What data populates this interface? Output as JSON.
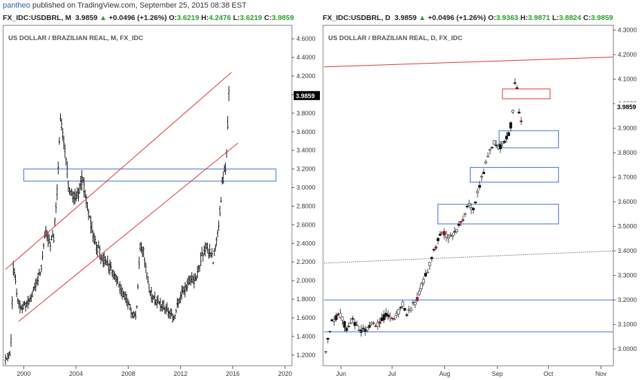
{
  "header": {
    "user": "pantheo",
    "published": "published on TradingView.com, September 25, 2015 08:38 EST"
  },
  "panels": [
    {
      "symbol": "FX_IDC:USDBRL, M",
      "price": "3.9859",
      "change": "+0.0496 (+1.26%)",
      "o": "3.6219",
      "h": "4.2476",
      "l": "3.6219",
      "c": "3.9859",
      "title": "US DOLLAR / BRAZILIAN REAL, M, FX_IDC",
      "last_label": "3.9859"
    },
    {
      "symbol": "FX_IDC:USDBRL, D",
      "price": "3.9859",
      "change": "+0.0496 (+1.26%)",
      "o": "3.9363",
      "h": "3.9871",
      "l": "3.8824",
      "c": "3.9859",
      "title": "US DOLLAR / BRAZILIAN REAL, D, FX_IDC",
      "last_label": "3.9859"
    }
  ],
  "labels": {
    "o": "O:",
    "h": "H:",
    "l": "L:",
    "c": "C:",
    "arrow": "▲"
  },
  "colors": {
    "up": "#2a9d2a",
    "down": "#000000",
    "trend": "#e03030",
    "zone_blue": "#3a6fd0",
    "zone_red": "#e03030",
    "brand_blue": "#2a62a5"
  },
  "chart_data": [
    {
      "type": "bar",
      "title": "US DOLLAR / BRAZILIAN REAL, M, FX_IDC",
      "interval": "monthly",
      "x_ticks": [
        "2000",
        "2004",
        "2008",
        "2012",
        "2016",
        "2020"
      ],
      "x_tick_years": [
        2000,
        2004,
        2008,
        2012,
        2016,
        2020
      ],
      "y_ticks": [
        "4.6000",
        "4.4000",
        "4.2000",
        "4.0000",
        "3.8000",
        "3.6000",
        "3.4000",
        "3.2000",
        "3.0000",
        "2.8000",
        "2.6000",
        "2.4000",
        "2.2000",
        "2.0000",
        "1.8000",
        "1.6000",
        "1.4000",
        "1.2000"
      ],
      "xlim": [
        1998.5,
        2020.5
      ],
      "ylim": [
        1.08,
        4.72
      ],
      "grid": false,
      "path_points": [
        [
          1998.6,
          1.15
        ],
        [
          1999.0,
          1.22
        ],
        [
          1999.2,
          2.15
        ],
        [
          1999.6,
          1.75
        ],
        [
          2000.0,
          1.72
        ],
        [
          2000.5,
          1.82
        ],
        [
          2000.9,
          1.95
        ],
        [
          2001.3,
          2.1
        ],
        [
          2001.7,
          2.55
        ],
        [
          2001.9,
          2.4
        ],
        [
          2002.3,
          2.45
        ],
        [
          2002.6,
          3.05
        ],
        [
          2002.8,
          3.75
        ],
        [
          2002.95,
          3.6
        ],
        [
          2003.2,
          3.35
        ],
        [
          2003.5,
          2.95
        ],
        [
          2003.8,
          2.9
        ],
        [
          2004.2,
          2.95
        ],
        [
          2004.5,
          3.1
        ],
        [
          2004.8,
          2.85
        ],
        [
          2005.2,
          2.55
        ],
        [
          2005.6,
          2.35
        ],
        [
          2006.0,
          2.25
        ],
        [
          2006.5,
          2.15
        ],
        [
          2007.0,
          2.05
        ],
        [
          2007.5,
          1.9
        ],
        [
          2007.9,
          1.78
        ],
        [
          2008.3,
          1.65
        ],
        [
          2008.6,
          1.62
        ],
        [
          2008.9,
          2.35
        ],
        [
          2009.2,
          2.3
        ],
        [
          2009.6,
          1.9
        ],
        [
          2010.0,
          1.78
        ],
        [
          2010.5,
          1.76
        ],
        [
          2011.0,
          1.68
        ],
        [
          2011.5,
          1.58
        ],
        [
          2011.9,
          1.8
        ],
        [
          2012.3,
          1.9
        ],
        [
          2012.7,
          2.02
        ],
        [
          2013.2,
          2.0
        ],
        [
          2013.6,
          2.28
        ],
        [
          2014.0,
          2.38
        ],
        [
          2014.5,
          2.22
        ],
        [
          2014.9,
          2.58
        ],
        [
          2015.2,
          3.05
        ],
        [
          2015.5,
          3.25
        ],
        [
          2015.7,
          4.0
        ]
      ],
      "trend_lines": [
        {
          "from": [
            1998.6,
            2.12
          ],
          "to": [
            2015.9,
            4.24
          ]
        },
        {
          "from": [
            1999.6,
            1.56
          ],
          "to": [
            2016.4,
            3.48
          ]
        }
      ],
      "zones": [
        {
          "x": [
            2000.0,
            2019.3
          ],
          "y": [
            3.07,
            3.2
          ],
          "color": "blue"
        }
      ],
      "last": 3.9859
    },
    {
      "type": "bar",
      "title": "US DOLLAR / BRAZILIAN REAL, D, FX_IDC",
      "interval": "daily",
      "x_ticks": [
        "Jun",
        "Jul",
        "Aug",
        "Sep",
        "Oct",
        "Nov"
      ],
      "x_tick_pos": [
        0,
        30,
        61,
        92,
        122,
        153
      ],
      "y_ticks": [
        "4.3000",
        "4.2000",
        "4.1000",
        "4.0000",
        "3.9000",
        "3.8000",
        "3.7000",
        "3.6000",
        "3.5000",
        "3.4000",
        "3.3000",
        "3.2000",
        "3.1000",
        "3.0000"
      ],
      "xlim": [
        -10,
        160
      ],
      "ylim": [
        2.93,
        4.31
      ],
      "grid": false,
      "path_points": [
        [
          -9,
          3.0
        ],
        [
          -6,
          3.1
        ],
        [
          -3,
          3.13
        ],
        [
          0,
          3.14
        ],
        [
          3,
          3.08
        ],
        [
          6,
          3.12
        ],
        [
          9,
          3.1
        ],
        [
          12,
          3.07
        ],
        [
          15,
          3.08
        ],
        [
          18,
          3.1
        ],
        [
          21,
          3.1
        ],
        [
          24,
          3.12
        ],
        [
          27,
          3.14
        ],
        [
          30,
          3.12
        ],
        [
          33,
          3.14
        ],
        [
          36,
          3.19
        ],
        [
          39,
          3.14
        ],
        [
          42,
          3.18
        ],
        [
          45,
          3.2
        ],
        [
          48,
          3.27
        ],
        [
          51,
          3.32
        ],
        [
          54,
          3.38
        ],
        [
          57,
          3.45
        ],
        [
          60,
          3.48
        ],
        [
          63,
          3.46
        ],
        [
          66,
          3.47
        ],
        [
          69,
          3.5
        ],
        [
          72,
          3.52
        ],
        [
          75,
          3.6
        ],
        [
          78,
          3.56
        ],
        [
          81,
          3.66
        ],
        [
          84,
          3.72
        ],
        [
          87,
          3.8
        ],
        [
          90,
          3.84
        ],
        [
          93,
          3.82
        ],
        [
          96,
          3.84
        ],
        [
          99,
          3.88
        ],
        [
          101,
          3.95
        ],
        [
          103,
          4.17
        ],
        [
          104,
          3.97
        ],
        [
          106,
          3.93
        ]
      ],
      "trend_lines": [
        {
          "from": [
            -10,
            4.15
          ],
          "to": [
            160,
            4.19
          ],
          "color": "red"
        },
        {
          "from": [
            -10,
            3.35
          ],
          "to": [
            160,
            3.4
          ],
          "color": "gray",
          "dashed": true
        },
        {
          "from": [
            -10,
            3.2
          ],
          "to": [
            160,
            3.2
          ],
          "color": "blue"
        },
        {
          "from": [
            -10,
            3.07
          ],
          "to": [
            160,
            3.07
          ],
          "color": "blue"
        }
      ],
      "zones": [
        {
          "x": [
            57,
            128
          ],
          "y": [
            3.51,
            3.59
          ],
          "color": "blue"
        },
        {
          "x": [
            76,
            128
          ],
          "y": [
            3.68,
            3.74
          ],
          "color": "blue"
        },
        {
          "x": [
            93,
            128
          ],
          "y": [
            3.82,
            3.89
          ],
          "color": "blue"
        },
        {
          "x": [
            95,
            123
          ],
          "y": [
            4.02,
            4.06
          ],
          "color": "red"
        }
      ],
      "last": 3.9859
    }
  ]
}
